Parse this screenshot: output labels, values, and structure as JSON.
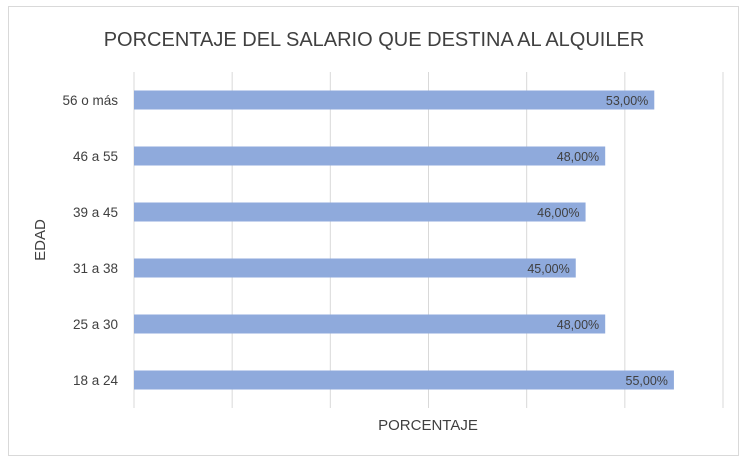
{
  "chart_data": {
    "type": "bar",
    "orientation": "horizontal",
    "title": "PORCENTAJE DEL SALARIO QUE DESTINA AL ALQUILER",
    "xlabel": "PORCENTAJE",
    "ylabel": "EDAD",
    "categories": [
      "56 o más",
      "46 a 55",
      "39 a 45",
      "31 a 38",
      "25 a 30",
      "18 a 24"
    ],
    "values": [
      53,
      48,
      46,
      45,
      48,
      55
    ],
    "data_labels": [
      "53,00%",
      "48,00%",
      "46,00%",
      "45,00%",
      "48,00%",
      "55,00%"
    ],
    "xlim": [
      0,
      60
    ],
    "x_gridline_step": 10,
    "grid": true,
    "bar_color": "#8faadc",
    "legend": "none"
  }
}
